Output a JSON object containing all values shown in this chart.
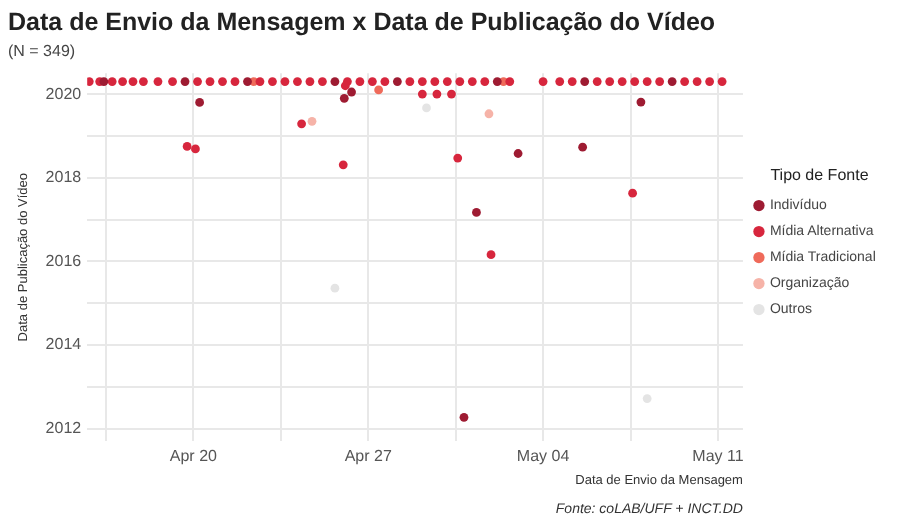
{
  "chart_data": {
    "type": "scatter",
    "title": "Data de Envio da Mensagem x Data de Publicação do Vídeo",
    "subtitle": "(N = 349)",
    "xlabel": "Data de Envio da Mensagem",
    "ylabel": "Data de Publicação do Vídeo",
    "legend_title": "Tipo de Fonte",
    "legend": "right",
    "grid": true,
    "marker": "circle",
    "annotations": [
      "Fonte: coLAB/UFF + INCT.DD"
    ],
    "xlim": [
      "2020-04-15T18:00",
      "2020-05-12"
    ],
    "xticks": [
      {
        "value": "2020-04-16T12:00",
        "label": null
      },
      {
        "value": "2020-04-20",
        "label": "Apr 20"
      },
      {
        "value": "2020-04-23T12:00",
        "label": null
      },
      {
        "value": "2020-04-27",
        "label": "Apr 27"
      },
      {
        "value": "2020-04-30T12:00",
        "label": null
      },
      {
        "value": "2020-05-04",
        "label": "May 04"
      },
      {
        "value": "2020-05-07T12:00",
        "label": null
      },
      {
        "value": "2020-05-11",
        "label": "May 11"
      }
    ],
    "ylim": [
      2011.7,
      2020.5
    ],
    "yticks": [
      2012,
      {
        "value": 2013,
        "label": null
      },
      2014,
      {
        "value": 2015,
        "label": null
      },
      2016,
      {
        "value": 2017,
        "label": null
      },
      2018,
      {
        "value": 2019,
        "label": null
      },
      2020
    ],
    "series": [
      {
        "name": "Indivíduo",
        "color": "#9e1b32",
        "x": [
          "2020-04-16T10:00",
          "2020-04-19T16:00",
          "2020-04-22T04:00",
          "2020-04-25T16:00",
          "2020-04-28T04:00",
          "2020-05-02T04:00",
          "2020-05-05T16:00",
          "2020-05-09T04:00",
          "2020-04-20T06:00",
          "2020-04-30T20:00",
          "2020-05-01T08:00",
          "2020-05-03T00:00",
          "2020-05-05T14:00",
          "2020-05-07T22:00",
          "2020-04-26T01:00",
          "2020-04-26T08:00"
        ],
        "values": [
          2020.3,
          2020.3,
          2020.3,
          2020.3,
          2020.3,
          2020.3,
          2020.3,
          2020.3,
          2019.8,
          2012.27,
          2017.17,
          2018.58,
          2018.73,
          2019.81,
          2019.9,
          2020.05
        ]
      },
      {
        "name": "Mídia Alternativa",
        "color": "#d7263d",
        "x": [
          "2020-04-15T20:00",
          "2020-04-16T06:00",
          "2020-04-16T18:00",
          "2020-04-17T04:00",
          "2020-04-17T14:00",
          "2020-04-18T00:00",
          "2020-04-18T14:00",
          "2020-04-19T04:00",
          "2020-04-20T04:00",
          "2020-04-20T16:00",
          "2020-04-21T04:00",
          "2020-04-21T16:00",
          "2020-04-22T16:00",
          "2020-04-23T04:00",
          "2020-04-23T16:00",
          "2020-04-24T04:00",
          "2020-04-24T16:00",
          "2020-04-25T04:00",
          "2020-04-26T04:00",
          "2020-04-26T16:00",
          "2020-04-27T04:00",
          "2020-04-27T16:00",
          "2020-04-28T16:00",
          "2020-04-29T04:00",
          "2020-04-29T16:00",
          "2020-04-30T04:00",
          "2020-04-30T16:00",
          "2020-05-01T04:00",
          "2020-05-01T16:00",
          "2020-05-02T16:00",
          "2020-05-04T00:00",
          "2020-05-04T16:00",
          "2020-05-05T04:00",
          "2020-05-06T04:00",
          "2020-05-06T16:00",
          "2020-05-07T04:00",
          "2020-05-07T16:00",
          "2020-05-08T04:00",
          "2020-05-08T16:00",
          "2020-05-09T16:00",
          "2020-05-10T04:00",
          "2020-05-10T16:00",
          "2020-05-11T04:00",
          "2020-04-19T18:00",
          "2020-04-20T02:00",
          "2020-04-24T08:00",
          "2020-04-26T00:00",
          "2020-04-26T02:00",
          "2020-04-29T04:00",
          "2020-04-29T18:00",
          "2020-04-30T08:00",
          "2020-04-30T14:00",
          "2020-05-01T22:00",
          "2020-05-07T14:00"
        ],
        "values": [
          2020.3,
          2020.3,
          2020.3,
          2020.3,
          2020.3,
          2020.3,
          2020.3,
          2020.3,
          2020.3,
          2020.3,
          2020.3,
          2020.3,
          2020.3,
          2020.3,
          2020.3,
          2020.3,
          2020.3,
          2020.3,
          2020.3,
          2020.3,
          2020.3,
          2020.3,
          2020.3,
          2020.3,
          2020.3,
          2020.3,
          2020.3,
          2020.3,
          2020.3,
          2020.3,
          2020.3,
          2020.3,
          2020.3,
          2020.3,
          2020.3,
          2020.3,
          2020.3,
          2020.3,
          2020.3,
          2020.3,
          2020.3,
          2020.3,
          2020.3,
          2018.75,
          2018.69,
          2019.29,
          2018.31,
          2020.2,
          2020.0,
          2020.0,
          2020.0,
          2018.47,
          2016.16,
          2017.63
        ]
      },
      {
        "name": "Mídia Tradicional",
        "color": "#ef6a5a",
        "x": [
          "2020-04-27T10:00",
          "2020-04-22T10:00",
          "2020-05-02T10:00"
        ],
        "values": [
          2020.1,
          2020.3,
          2020.3
        ]
      },
      {
        "name": "Organização",
        "color": "#f6b3a8",
        "x": [
          "2020-04-24T18:00",
          "2020-05-01T20:00"
        ],
        "values": [
          2019.35,
          2019.53
        ]
      },
      {
        "name": "Outros",
        "color": "#e4e4e4",
        "x": [
          "2020-04-25T16:00",
          "2020-04-29T08:00",
          "2020-05-08T04:00"
        ],
        "values": [
          2015.36,
          2019.67,
          2012.72
        ]
      }
    ]
  }
}
